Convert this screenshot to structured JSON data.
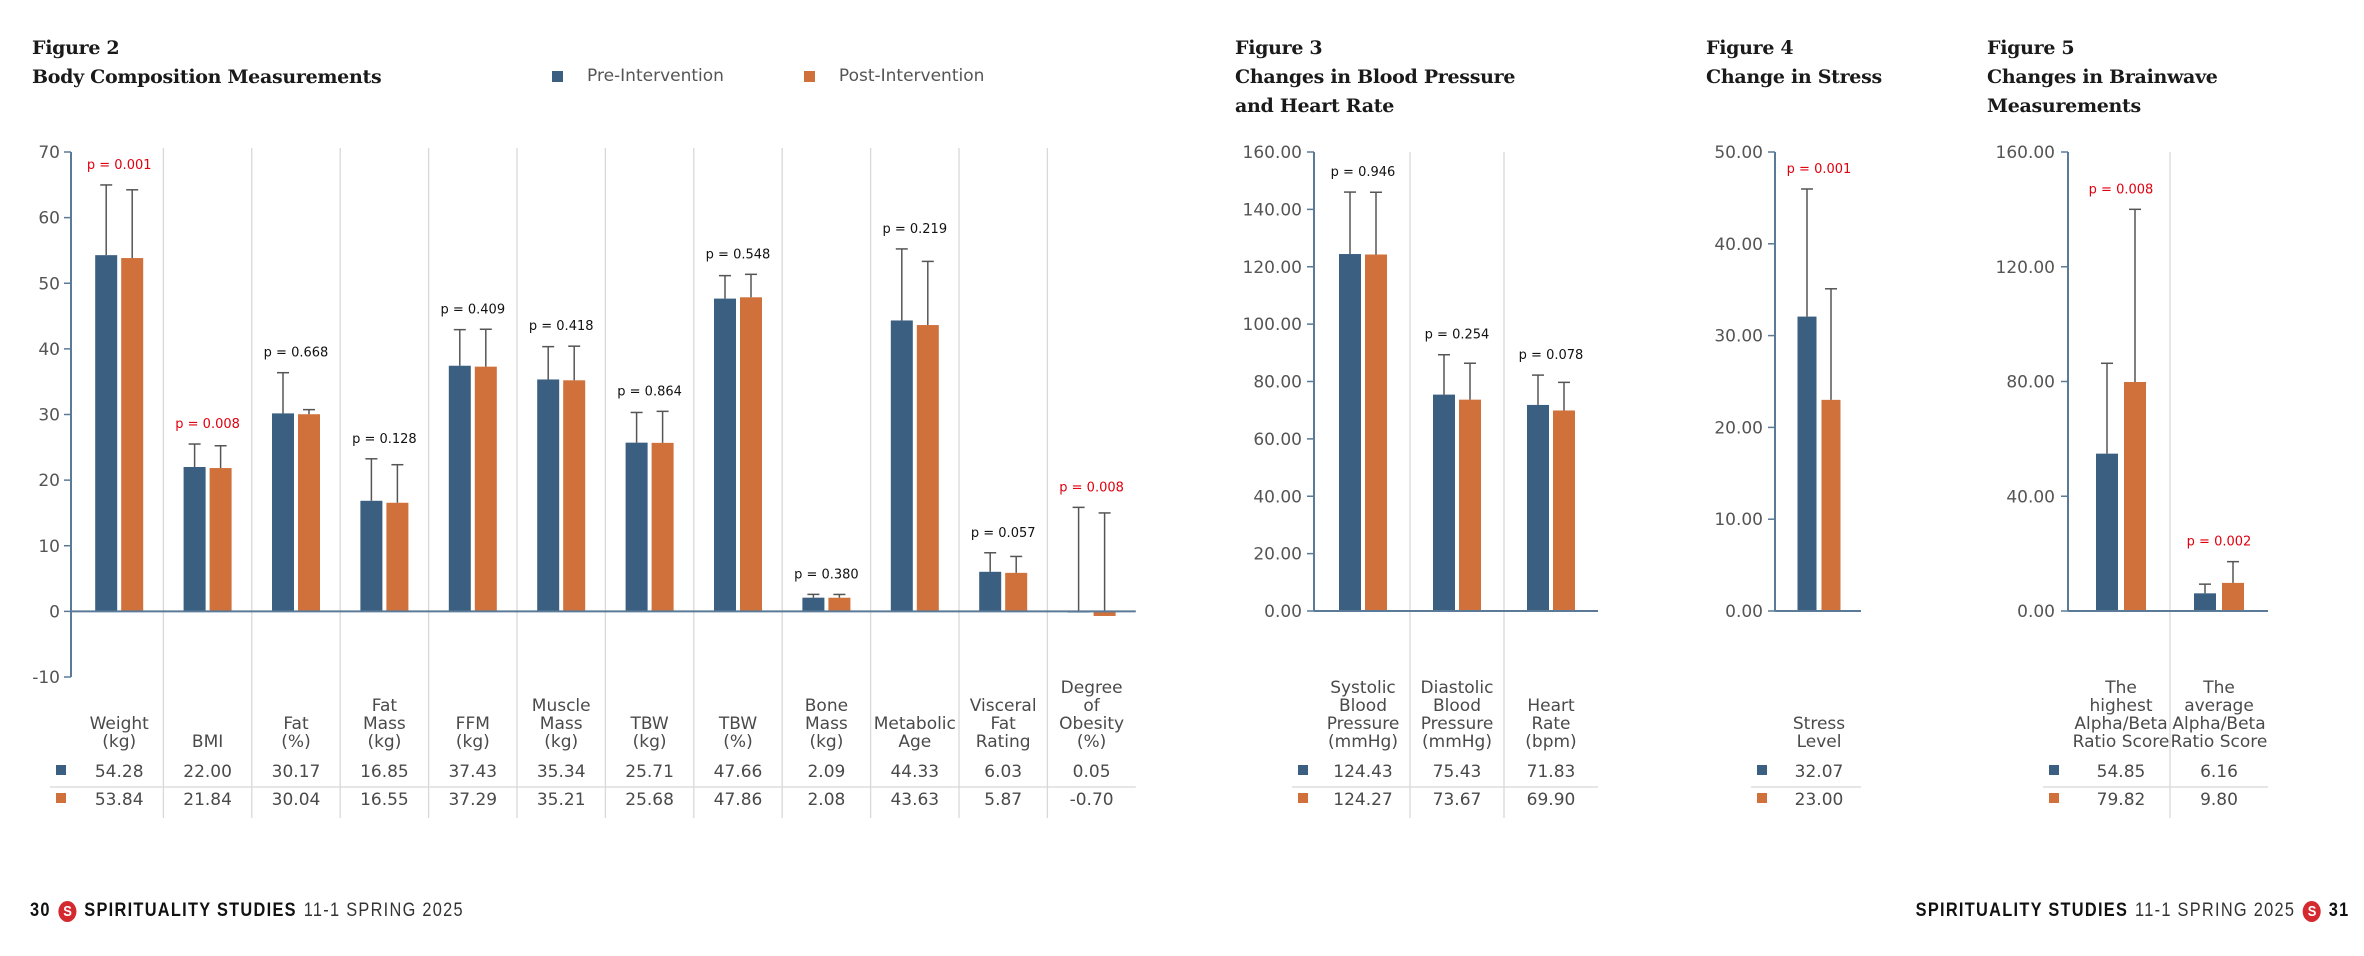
{
  "colors": {
    "pre": "#3a5f80",
    "post": "#d0703a",
    "significant": "#e0000f",
    "nonsignificant": "#111111",
    "axis": "#5a7a98",
    "divider": "#d8d8d8",
    "errorbar": "#555555"
  },
  "legend": {
    "pre": "Pre-Intervention",
    "post": "Post-Intervention"
  },
  "footer": {
    "left": {
      "page": "30",
      "journal": "SPIRITUALITY STUDIES",
      "issue": "11-1 SPRING 2025",
      "logo_letter": "S"
    },
    "right": {
      "page": "31",
      "journal": "SPIRITUALITY STUDIES",
      "issue": "11-1 SPRING 2025",
      "logo_letter": "S"
    }
  },
  "chart_data": [
    {
      "id": "fig2",
      "type": "bar",
      "figure_label": "Figure 2",
      "title": "Body Composition Measurements",
      "ylim": [
        -10,
        70
      ],
      "yticks": [
        "70",
        "60",
        "50",
        "40",
        "30",
        "20",
        "10",
        "0",
        "-10"
      ],
      "ytick_values": [
        70,
        60,
        50,
        40,
        30,
        20,
        10,
        0,
        -10
      ],
      "categories": [
        {
          "label": [
            "Weight",
            "(kg)"
          ],
          "p": "p = 0.001",
          "sig": true
        },
        {
          "label": [
            "BMI"
          ],
          "p": "p = 0.008",
          "sig": true
        },
        {
          "label": [
            "Fat",
            "(%)"
          ],
          "p": "p = 0.668",
          "sig": false
        },
        {
          "label": [
            "Fat",
            "Mass",
            "(kg)"
          ],
          "p": "p = 0.128",
          "sig": false
        },
        {
          "label": [
            "FFM",
            "(kg)"
          ],
          "p": "p = 0.409",
          "sig": false
        },
        {
          "label": [
            "Muscle",
            "Mass",
            "(kg)"
          ],
          "p": "p = 0.418",
          "sig": false
        },
        {
          "label": [
            "TBW",
            "(kg)"
          ],
          "p": "p = 0.864",
          "sig": false
        },
        {
          "label": [
            "TBW",
            "(%)"
          ],
          "p": "p = 0.548",
          "sig": false
        },
        {
          "label": [
            "Bone",
            "Mass",
            "(kg)"
          ],
          "p": "p = 0.380",
          "sig": false
        },
        {
          "label": [
            "Metabolic",
            "Age"
          ],
          "p": "p = 0.219",
          "sig": false
        },
        {
          "label": [
            "Visceral",
            "Fat",
            "Rating"
          ],
          "p": "p = 0.057",
          "sig": false
        },
        {
          "label": [
            "Degree",
            "of",
            "Obesity",
            "(%)"
          ],
          "p": "p = 0.008",
          "sig": true
        }
      ],
      "series": [
        {
          "name": "Pre-Intervention",
          "values": [
            54.28,
            22.0,
            30.17,
            16.85,
            37.43,
            35.34,
            25.71,
            47.66,
            2.09,
            44.33,
            6.03,
            0.05
          ],
          "labels": [
            "54.28",
            "22.00",
            "30.17",
            "16.85",
            "37.43",
            "35.34",
            "25.71",
            "47.66",
            "2.09",
            "44.33",
            "6.03",
            "0.05"
          ],
          "error": [
            10.7,
            3.5,
            6.2,
            6.4,
            5.5,
            5.0,
            4.6,
            3.5,
            0.5,
            10.9,
            2.9,
            15.8
          ]
        },
        {
          "name": "Post-Intervention",
          "values": [
            53.84,
            21.84,
            30.04,
            16.55,
            37.29,
            35.21,
            25.68,
            47.86,
            2.08,
            43.63,
            5.87,
            -0.7
          ],
          "labels": [
            "53.84",
            "21.84",
            "30.04",
            "16.55",
            "37.29",
            "35.21",
            "25.68",
            "47.86",
            "2.08",
            "43.63",
            "5.87",
            "-0.70"
          ],
          "error": [
            10.4,
            3.4,
            0.7,
            5.8,
            5.7,
            5.2,
            4.8,
            3.5,
            0.5,
            9.7,
            2.5,
            15.0
          ]
        }
      ]
    },
    {
      "id": "fig3",
      "type": "bar",
      "figure_label": "Figure 3",
      "title": "Changes in Blood Pressure and Heart Rate",
      "title_lines": [
        "Changes in Blood Pressure",
        "and Heart Rate"
      ],
      "ylim": [
        0,
        160
      ],
      "yticks": [
        "160.00",
        "140.00",
        "120.00",
        "100.00",
        "80.00",
        "60.00",
        "40.00",
        "20.00",
        "0.00"
      ],
      "ytick_values": [
        160,
        140,
        120,
        100,
        80,
        60,
        40,
        20,
        0
      ],
      "categories": [
        {
          "label": [
            "Systolic",
            "Blood",
            "Pressure",
            "(mmHg)"
          ],
          "p": "p = 0.946",
          "sig": false
        },
        {
          "label": [
            "Diastolic",
            "Blood",
            "Pressure",
            "(mmHg)"
          ],
          "p": "p = 0.254",
          "sig": false
        },
        {
          "label": [
            "Heart",
            "Rate",
            "(bpm)"
          ],
          "p": "p = 0.078",
          "sig": false
        }
      ],
      "series": [
        {
          "name": "Pre-Intervention",
          "values": [
            124.43,
            75.43,
            71.83
          ],
          "labels": [
            "124.43",
            "75.43",
            "71.83"
          ],
          "error": [
            21.6,
            13.9,
            10.4
          ]
        },
        {
          "name": "Post-Intervention",
          "values": [
            124.27,
            73.67,
            69.9
          ],
          "labels": [
            "124.27",
            "73.67",
            "69.90"
          ],
          "error": [
            21.7,
            12.7,
            9.8
          ]
        }
      ]
    },
    {
      "id": "fig4",
      "type": "bar",
      "figure_label": "Figure 4",
      "title": "Change in Stress",
      "ylim": [
        0,
        50
      ],
      "yticks": [
        "50.00",
        "40.00",
        "30.00",
        "20.00",
        "10.00",
        "0.00"
      ],
      "ytick_values": [
        50,
        40,
        30,
        20,
        10,
        0
      ],
      "categories": [
        {
          "label": [
            "Stress",
            "Level"
          ],
          "p": "p = 0.001",
          "sig": true
        }
      ],
      "series": [
        {
          "name": "Pre-Intervention",
          "values": [
            32.07
          ],
          "labels": [
            "32.07"
          ],
          "error": [
            13.9
          ]
        },
        {
          "name": "Post-Intervention",
          "values": [
            23.0
          ],
          "labels": [
            "23.00"
          ],
          "error": [
            12.1
          ]
        }
      ]
    },
    {
      "id": "fig5",
      "type": "bar",
      "figure_label": "Figure 5",
      "title": "Changes in Brainwave Measurements",
      "title_lines": [
        "Changes in Brainwave",
        "Measurements"
      ],
      "ylim": [
        0,
        160
      ],
      "yticks": [
        "160.00",
        "120.00",
        "80.00",
        "40.00",
        "0.00"
      ],
      "ytick_values": [
        160,
        120,
        80,
        40,
        0
      ],
      "categories": [
        {
          "label": [
            "The",
            "highest",
            "Alpha/Beta",
            "Ratio Score"
          ],
          "p": "p = 0.008",
          "sig": true
        },
        {
          "label": [
            "The",
            "average",
            "Alpha/Beta",
            "Ratio Score"
          ],
          "p": "p = 0.002",
          "sig": true
        }
      ],
      "series": [
        {
          "name": "Pre-Intervention",
          "values": [
            54.85,
            6.16
          ],
          "labels": [
            "54.85",
            "6.16"
          ],
          "error": [
            31.5,
            3.2
          ]
        },
        {
          "name": "Post-Intervention",
          "values": [
            79.82,
            9.8
          ],
          "labels": [
            "79.82",
            "9.80"
          ],
          "error": [
            60.2,
            7.4
          ]
        }
      ]
    }
  ]
}
